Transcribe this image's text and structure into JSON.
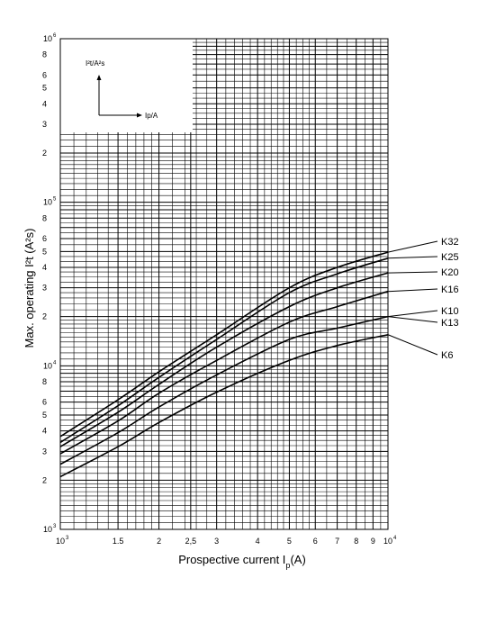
{
  "chart_data": {
    "type": "line",
    "title": "",
    "xlabel": "Prospective current I",
    "xlabel_sub": "p",
    "xlabel_unit": "(A)",
    "ylabel": "Max. operating I²t (A²s)",
    "x_scale": "log",
    "y_scale": "log",
    "xlim": [
      1000,
      10000
    ],
    "ylim": [
      1000,
      1000000
    ],
    "grid": true,
    "x_ticks": [
      {
        "value": 1000,
        "base": "10",
        "exp": "3"
      },
      {
        "value": 1500,
        "label": "1.5"
      },
      {
        "value": 2000,
        "label": "2"
      },
      {
        "value": 2500,
        "label": "2,5"
      },
      {
        "value": 3000,
        "label": "3"
      },
      {
        "value": 4000,
        "label": "4"
      },
      {
        "value": 5000,
        "label": "5"
      },
      {
        "value": 6000,
        "label": "6"
      },
      {
        "value": 7000,
        "label": "7"
      },
      {
        "value": 8000,
        "label": "8"
      },
      {
        "value": 9000,
        "label": "9"
      },
      {
        "value": 10000,
        "base": "10",
        "exp": "4"
      }
    ],
    "y_ticks": [
      {
        "value": 1000,
        "base": "10",
        "exp": "3"
      },
      {
        "value": 2000,
        "label": "2"
      },
      {
        "value": 3000,
        "label": "3"
      },
      {
        "value": 4000,
        "label": "4"
      },
      {
        "value": 5000,
        "label": "5"
      },
      {
        "value": 6000,
        "label": "6"
      },
      {
        "value": 8000,
        "label": "8"
      },
      {
        "value": 10000,
        "base": "10",
        "exp": "4"
      },
      {
        "value": 20000,
        "label": "2"
      },
      {
        "value": 30000,
        "label": "3"
      },
      {
        "value": 40000,
        "label": "4"
      },
      {
        "value": 50000,
        "label": "5"
      },
      {
        "value": 60000,
        "label": "6"
      },
      {
        "value": 80000,
        "label": "8"
      },
      {
        "value": 100000,
        "base": "10",
        "exp": "5"
      },
      {
        "value": 200000,
        "label": "2"
      },
      {
        "value": 300000,
        "label": "3"
      },
      {
        "value": 400000,
        "label": "4"
      },
      {
        "value": 500000,
        "label": "5"
      },
      {
        "value": 600000,
        "label": "6"
      },
      {
        "value": 800000,
        "label": "8"
      },
      {
        "value": 1000000,
        "base": "10",
        "exp": "6"
      }
    ],
    "series": [
      {
        "name": "K32",
        "label_x": 490,
        "label_y": 272,
        "x": [
          1000,
          1500,
          2000,
          3000,
          5000,
          7000,
          10000
        ],
        "y": [
          3700,
          6200,
          9200,
          15500,
          30000,
          40000,
          49500
        ]
      },
      {
        "name": "K25",
        "label_x": 490,
        "label_y": 289,
        "x": [
          1000,
          1500,
          2000,
          3000,
          5000,
          7000,
          10000
        ],
        "y": [
          3400,
          5700,
          8500,
          14500,
          28000,
          36500,
          45500
        ]
      },
      {
        "name": "K20",
        "label_x": 490,
        "label_y": 306,
        "x": [
          1000,
          1500,
          2000,
          3000,
          5000,
          7000,
          10000
        ],
        "y": [
          3200,
          5200,
          7700,
          13000,
          23000,
          30000,
          37000
        ]
      },
      {
        "name": "K16",
        "label_x": 490,
        "label_y": 325,
        "x": [
          1000,
          1500,
          2000,
          3000,
          5000,
          7000,
          10000
        ],
        "y": [
          2900,
          4600,
          6800,
          10800,
          18500,
          23000,
          28500
        ]
      },
      {
        "name": "K10",
        "label_x": 490,
        "label_y": 349,
        "x": [
          1000,
          1500,
          2000,
          3000,
          5000,
          7000,
          10000
        ],
        "y": [
          2500,
          3900,
          5600,
          8800,
          14500,
          17000,
          20000
        ]
      },
      {
        "name": "K13",
        "label_x": 490,
        "label_y": 362,
        "x": [],
        "y": []
      },
      {
        "name": "K6",
        "label_x": 490,
        "label_y": 398,
        "x": [
          1000,
          1500,
          2000,
          3000,
          5000,
          7000,
          10000
        ],
        "y": [
          2100,
          3200,
          4500,
          6900,
          10800,
          13300,
          15500
        ]
      }
    ],
    "inset": {
      "y_label": "I²t/A²s",
      "x_label": "Ip/A"
    }
  }
}
